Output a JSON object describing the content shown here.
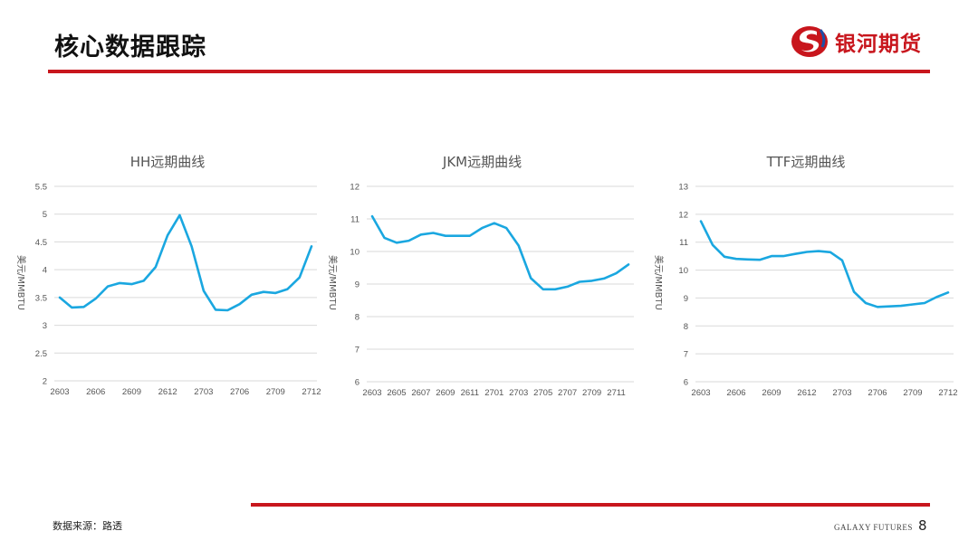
{
  "header": {
    "title": "核心数据跟踪",
    "brand": "银河期货"
  },
  "footer": {
    "source": "数据来源：路透",
    "brand": "GALAXY FUTURES",
    "page": "8"
  },
  "colors": {
    "accent": "#c8161d",
    "line": "#1aa7e0",
    "grid": "#d9d9d9"
  },
  "chart_data": [
    {
      "type": "line",
      "title": "HH远期曲线",
      "ylabel": "美元/MMBTU",
      "ylim": [
        2,
        5.5
      ],
      "yticks": [
        "2",
        "2.5",
        "3",
        "3.5",
        "4",
        "4.5",
        "5",
        "5.5"
      ],
      "x": [
        "2603",
        "2604",
        "2605",
        "2606",
        "2607",
        "2608",
        "2609",
        "2610",
        "2611",
        "2612",
        "2701",
        "2702",
        "2703",
        "2704",
        "2705",
        "2706",
        "2707",
        "2708",
        "2709",
        "2710",
        "2711",
        "2712"
      ],
      "xticklabels": [
        "2603",
        "2606",
        "2609",
        "2612",
        "2703",
        "2706",
        "2709",
        "2712"
      ],
      "series": [
        {
          "values": [
            3.5,
            3.32,
            3.33,
            3.48,
            3.7,
            3.76,
            3.74,
            3.8,
            4.05,
            4.62,
            4.98,
            4.42,
            3.62,
            3.28,
            3.27,
            3.38,
            3.55,
            3.6,
            3.58,
            3.65,
            3.86,
            4.42
          ]
        }
      ],
      "grid": true
    },
    {
      "type": "line",
      "title": "JKM远期曲线",
      "ylabel": "美元/MMBTU",
      "ylim": [
        6,
        12
      ],
      "yticks": [
        "6",
        "7",
        "8",
        "9",
        "10",
        "11",
        "12"
      ],
      "x": [
        "2603",
        "2604",
        "2605",
        "2606",
        "2607",
        "2608",
        "2609",
        "2610",
        "2611",
        "2612",
        "2701",
        "2702",
        "2703",
        "2704",
        "2705",
        "2706",
        "2707",
        "2708",
        "2709",
        "2710",
        "2711",
        "2712"
      ],
      "xticklabels": [
        "2603",
        "2605",
        "2607",
        "2609",
        "2611",
        "2701",
        "2703",
        "2705",
        "2707",
        "2709",
        "2711"
      ],
      "series": [
        {
          "values": [
            11.08,
            10.42,
            10.27,
            10.33,
            10.52,
            10.57,
            10.48,
            10.48,
            10.48,
            10.72,
            10.87,
            10.72,
            10.18,
            9.18,
            8.84,
            8.84,
            8.92,
            9.07,
            9.1,
            9.17,
            9.33,
            9.6
          ]
        }
      ],
      "grid": true
    },
    {
      "type": "line",
      "title": "TTF远期曲线",
      "ylabel": "美元/MMBTU",
      "ylim": [
        6,
        13
      ],
      "yticks": [
        "6",
        "7",
        "8",
        "9",
        "10",
        "11",
        "12",
        "13"
      ],
      "x": [
        "2603",
        "2604",
        "2605",
        "2606",
        "2607",
        "2608",
        "2609",
        "2610",
        "2611",
        "2612",
        "2701",
        "2702",
        "2703",
        "2704",
        "2705",
        "2706",
        "2707",
        "2708",
        "2709",
        "2710",
        "2711",
        "2712"
      ],
      "xticklabels": [
        "2603",
        "2606",
        "2609",
        "2612",
        "2703",
        "2706",
        "2709",
        "2712"
      ],
      "series": [
        {
          "values": [
            11.75,
            10.9,
            10.48,
            10.4,
            10.38,
            10.37,
            10.5,
            10.5,
            10.58,
            10.65,
            10.68,
            10.64,
            10.35,
            9.22,
            8.82,
            8.68,
            8.7,
            8.72,
            8.77,
            8.82,
            9.03,
            9.2
          ]
        }
      ],
      "grid": true
    }
  ]
}
